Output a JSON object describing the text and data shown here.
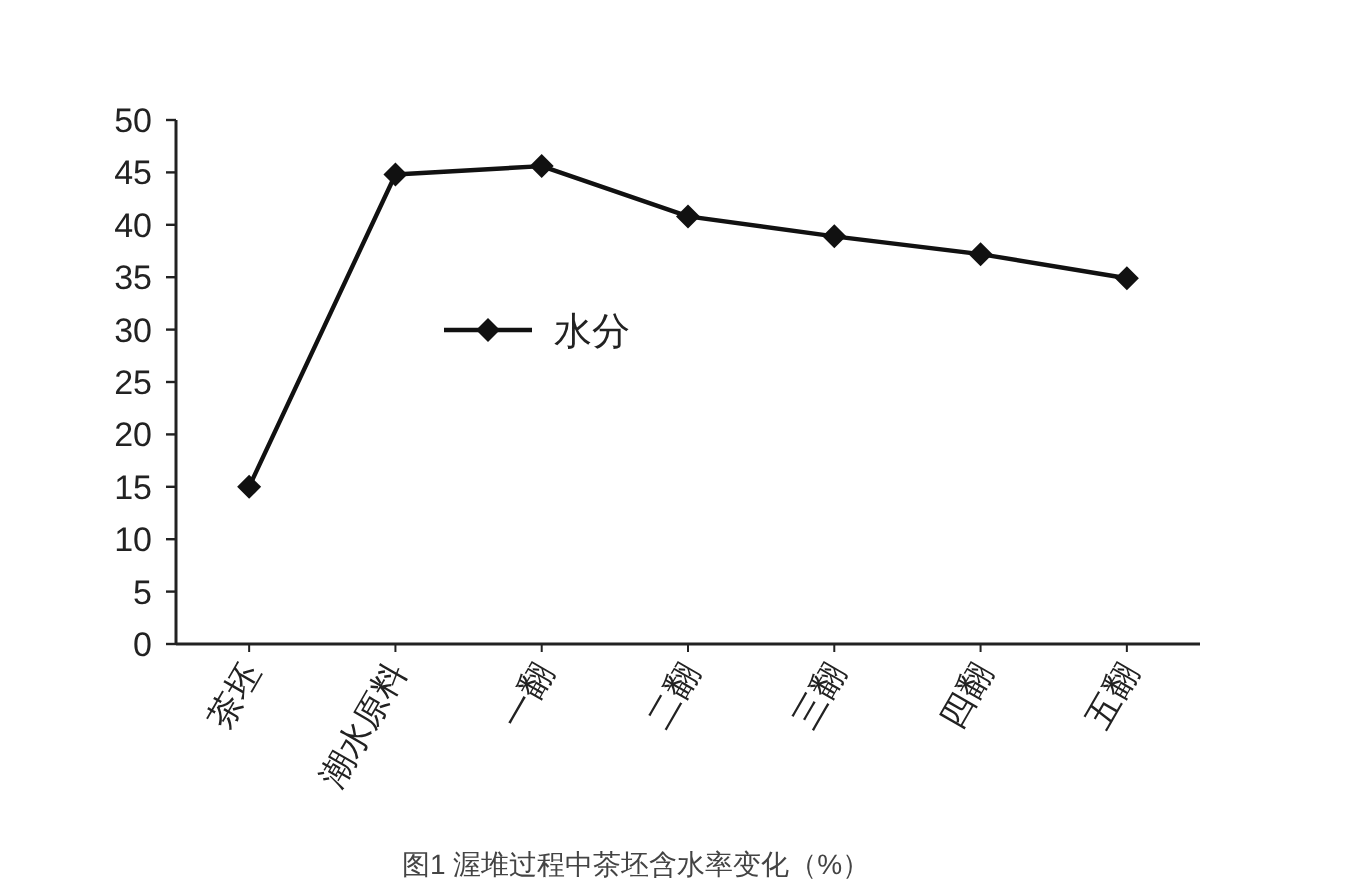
{
  "chart_data": {
    "type": "line",
    "categories": [
      "茶坯",
      "潮水原料",
      "一翻",
      "二翻",
      "三翻",
      "四翻",
      "五翻"
    ],
    "series": [
      {
        "name": "水分",
        "color": "#111111",
        "values": [
          15,
          44.8,
          45.6,
          40.8,
          38.9,
          37.2,
          34.9
        ]
      }
    ],
    "ylim": [
      0,
      50
    ],
    "yticks": [
      0,
      5,
      10,
      15,
      20,
      25,
      30,
      35,
      40,
      45,
      50
    ],
    "marker": "diamond",
    "line_style": "solid",
    "grid": false,
    "legend": "center",
    "annotations": [
      "图1  渥堆过程中茶坯含水率变化（%）"
    ]
  }
}
